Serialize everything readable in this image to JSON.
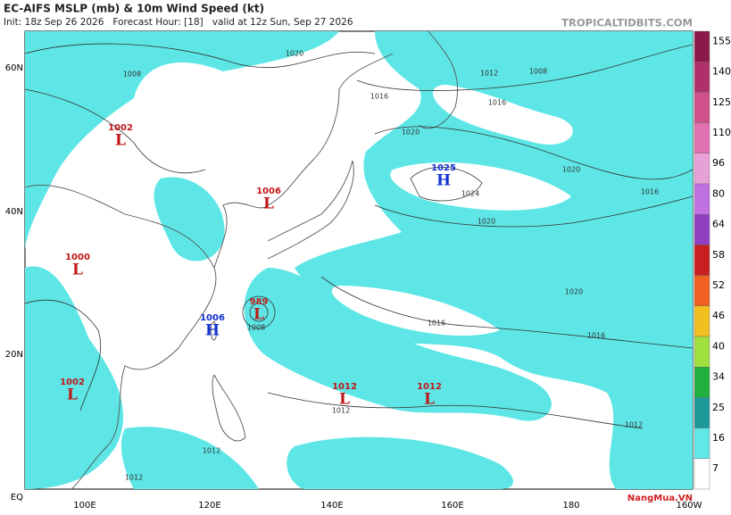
{
  "header": {
    "title": "EC-AIFS MSLP (mb) & 10m Wind Speed (kt)",
    "subtitle": "Init: 18z Sep 26 2026   Forecast Hour: [18]   valid at 12z Sun, Sep 27 2026",
    "site": "TROPICALTIDBITS.COM"
  },
  "lat_labels": [
    "60N",
    "40N",
    "20N",
    "EQ"
  ],
  "lon_labels": [
    "100E",
    "120E",
    "140E",
    "160E",
    "180",
    "160W"
  ],
  "colorbar": {
    "ticks": [
      155,
      140,
      125,
      110,
      96,
      80,
      64,
      58,
      52,
      46,
      40,
      34,
      25,
      16,
      7
    ],
    "colors": [
      "#8b1a4a",
      "#b0306a",
      "#d0508a",
      "#e070b0",
      "#e8a0d8",
      "#c070e0",
      "#9040c0",
      "#c82020",
      "#f06020",
      "#f0c020",
      "#a0e040",
      "#20b040",
      "#1f9a9a",
      "#60e8e8",
      "#ffffff"
    ]
  },
  "centers": [
    {
      "type": "L",
      "value": "1002"
    },
    {
      "type": "L",
      "value": "1006"
    },
    {
      "type": "L",
      "value": "1000"
    },
    {
      "type": "L",
      "value": "989"
    },
    {
      "type": "H",
      "value": "1006"
    },
    {
      "type": "L",
      "value": "1002"
    },
    {
      "type": "H",
      "value": "1025"
    },
    {
      "type": "L",
      "value": "1012"
    },
    {
      "type": "L",
      "value": "1012"
    }
  ],
  "isobar_labels": [
    "1008",
    "1020",
    "1016",
    "1012",
    "1008",
    "1020",
    "1016",
    "1024",
    "1020",
    "1020",
    "1016",
    "1020",
    "1016",
    "1016",
    "1008",
    "1012",
    "1012",
    "1012",
    "1012"
  ],
  "watermark": "NangMua.VN"
}
